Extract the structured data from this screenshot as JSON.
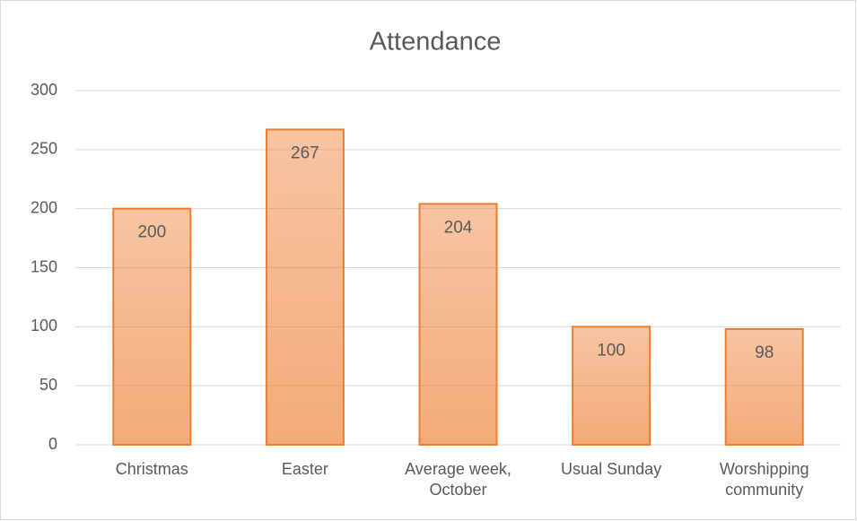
{
  "chart_data": {
    "type": "bar",
    "title": "Attendance",
    "categories": [
      "Christmas",
      "Easter",
      "Average week, October",
      "Usual Sunday",
      "Worshipping community"
    ],
    "values": [
      200,
      267,
      204,
      100,
      98
    ],
    "color": "#ed7d31",
    "ylim": [
      0,
      300
    ],
    "yticks": [
      0,
      50,
      100,
      150,
      200,
      250,
      300
    ],
    "grid": true
  }
}
